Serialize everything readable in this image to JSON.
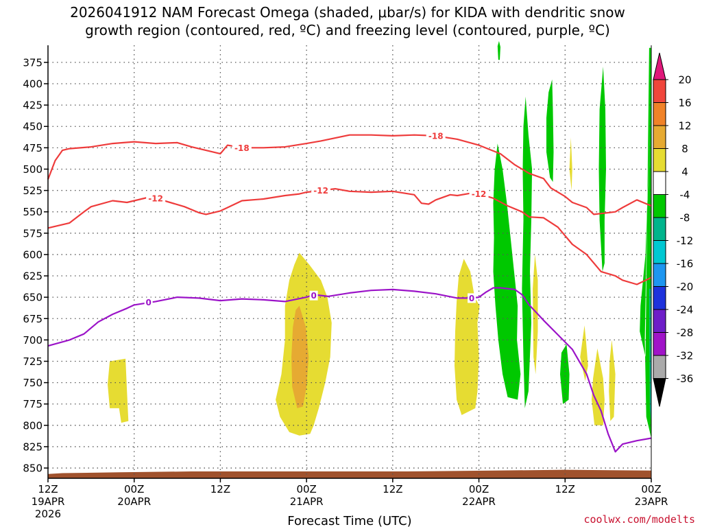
{
  "chart_data": {
    "type": "time-height cross section",
    "title_line1": "2026041912 NAM Forecast Omega (shaded, μbar/s) for KIDA with dendritic snow",
    "title_line2": "growth region (contoured, red, ºC) and freezing level (contoured, purple, ºC)",
    "xlabel": "Forecast Time (UTC)",
    "credit": "coolwx.com/modelts",
    "x_range_hours": [
      0,
      84
    ],
    "y_range_hpa": [
      355,
      862
    ],
    "x_ticks": [
      {
        "hour": 0,
        "label": "12Z",
        "date": "19APR",
        "year": "2026"
      },
      {
        "hour": 12,
        "label": "00Z",
        "date": "20APR"
      },
      {
        "hour": 24,
        "label": "12Z",
        "date": ""
      },
      {
        "hour": 36,
        "label": "00Z",
        "date": "21APR"
      },
      {
        "hour": 48,
        "label": "12Z",
        "date": ""
      },
      {
        "hour": 60,
        "label": "00Z",
        "date": "22APR"
      },
      {
        "hour": 72,
        "label": "12Z",
        "date": ""
      },
      {
        "hour": 84,
        "label": "00Z",
        "date": "23APR"
      }
    ],
    "y_ticks": [
      375,
      400,
      425,
      450,
      475,
      500,
      525,
      550,
      575,
      600,
      625,
      650,
      675,
      700,
      725,
      750,
      775,
      800,
      825,
      850
    ],
    "colorbar": {
      "labels": [
        "20",
        "16",
        "12",
        "8",
        "4",
        "-4",
        "-8",
        "-12",
        "-16",
        "-20",
        "-24",
        "-28",
        "-32",
        "-36"
      ],
      "colors": [
        "#e0187a",
        "#f0463c",
        "#f08228",
        "#e6aa32",
        "#e6dc32",
        "#ffffff",
        "#00c800",
        "#00b48c",
        "#00c8d2",
        "#1e96f0",
        "#1e32dc",
        "#6e1ec8",
        "#a014c8",
        "#aaaaaa",
        "#000000"
      ]
    },
    "contour_lines": [
      {
        "name": "-18C isotherm",
        "label": "-18",
        "color": "#ee3b3b",
        "points": [
          [
            0,
            512
          ],
          [
            1,
            490
          ],
          [
            2,
            478
          ],
          [
            3,
            476
          ],
          [
            6,
            474
          ],
          [
            9,
            470
          ],
          [
            12,
            468
          ],
          [
            15,
            470
          ],
          [
            18,
            469
          ],
          [
            20,
            474
          ],
          [
            23,
            480
          ],
          [
            24,
            482
          ],
          [
            25,
            472
          ],
          [
            27,
            475
          ],
          [
            30,
            475
          ],
          [
            33,
            474
          ],
          [
            36,
            470
          ],
          [
            38,
            467
          ],
          [
            42,
            460
          ],
          [
            45,
            460
          ],
          [
            48,
            461
          ],
          [
            51,
            460
          ],
          [
            54,
            461
          ],
          [
            57,
            465
          ],
          [
            60,
            472
          ],
          [
            63,
            482
          ],
          [
            65,
            495
          ],
          [
            67,
            505
          ],
          [
            69,
            511
          ],
          [
            70,
            522
          ],
          [
            72,
            532
          ],
          [
            73,
            539
          ],
          [
            75,
            545
          ],
          [
            76,
            553
          ],
          [
            77,
            552
          ],
          [
            79,
            550
          ],
          [
            80,
            545
          ],
          [
            82,
            536
          ],
          [
            84,
            543
          ]
        ]
      },
      {
        "name": "-12C isotherm",
        "label": "-12",
        "color": "#ee3b3b",
        "points": [
          [
            0,
            569
          ],
          [
            3,
            563
          ],
          [
            5,
            550
          ],
          [
            6,
            544
          ],
          [
            9,
            537
          ],
          [
            11,
            539
          ],
          [
            13,
            535
          ],
          [
            14,
            533
          ],
          [
            15,
            534
          ],
          [
            19,
            544
          ],
          [
            21,
            551
          ],
          [
            22,
            553
          ],
          [
            24,
            549
          ],
          [
            25,
            545
          ],
          [
            27,
            537
          ],
          [
            30,
            535
          ],
          [
            33,
            531
          ],
          [
            35,
            529
          ],
          [
            36,
            527
          ],
          [
            38,
            525
          ],
          [
            40,
            523
          ],
          [
            42,
            526
          ],
          [
            45,
            527
          ],
          [
            48,
            526
          ],
          [
            51,
            530
          ],
          [
            52,
            540
          ],
          [
            53,
            541
          ],
          [
            54,
            536
          ],
          [
            56,
            530
          ],
          [
            57,
            531
          ],
          [
            59,
            528
          ],
          [
            60,
            529
          ],
          [
            62,
            534
          ],
          [
            64,
            543
          ],
          [
            66,
            550
          ],
          [
            67,
            556
          ],
          [
            69,
            557
          ],
          [
            71,
            568
          ],
          [
            73,
            588
          ],
          [
            75,
            600
          ],
          [
            77,
            620
          ],
          [
            79,
            625
          ],
          [
            80,
            630
          ],
          [
            82,
            635
          ],
          [
            84,
            627
          ]
        ]
      },
      {
        "name": "0C freezing level",
        "label": "0",
        "color": "#9b13c8",
        "points": [
          [
            0,
            707
          ],
          [
            3,
            700
          ],
          [
            5,
            693
          ],
          [
            7,
            679
          ],
          [
            9,
            670
          ],
          [
            11,
            663
          ],
          [
            12,
            659
          ],
          [
            15,
            655
          ],
          [
            18,
            650
          ],
          [
            21,
            651
          ],
          [
            24,
            654
          ],
          [
            27,
            652
          ],
          [
            30,
            653
          ],
          [
            33,
            655
          ],
          [
            36,
            650
          ],
          [
            37,
            647
          ],
          [
            39,
            649
          ],
          [
            42,
            645
          ],
          [
            45,
            642
          ],
          [
            48,
            641
          ],
          [
            51,
            643
          ],
          [
            54,
            646
          ],
          [
            57,
            651
          ],
          [
            59,
            651
          ],
          [
            60,
            650
          ],
          [
            61,
            644
          ],
          [
            62,
            639
          ],
          [
            63,
            639
          ],
          [
            65,
            641
          ],
          [
            66,
            647
          ],
          [
            67,
            659
          ],
          [
            69,
            677
          ],
          [
            71,
            694
          ],
          [
            73,
            711
          ],
          [
            75,
            740
          ],
          [
            76,
            765
          ],
          [
            77,
            783
          ],
          [
            78,
            810
          ],
          [
            79,
            831
          ],
          [
            80,
            822
          ],
          [
            82,
            818
          ],
          [
            84,
            815
          ]
        ]
      }
    ],
    "omega_fill_regions": [
      {
        "name": "positive omega 4-8 near hour 9",
        "level": "4-8"
      },
      {
        "name": "positive omega 4-8 near hour 36",
        "level": "4-8"
      },
      {
        "name": "positive omega 8-12 core near hour 36",
        "level": "8-12"
      },
      {
        "name": "positive omega 4-8 near hour 58",
        "level": "4-8"
      },
      {
        "name": "negative omega -4 to -8 bands after hour 60",
        "level": "-4 to -8"
      }
    ],
    "terrain_surface_hpa": 855
  }
}
